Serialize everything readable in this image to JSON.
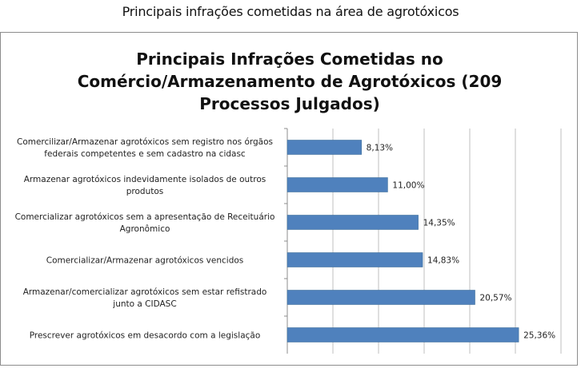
{
  "caption": "Principais infrações cometidas na área de agrotóxicos",
  "chart_data": {
    "type": "bar",
    "orientation": "horizontal",
    "title_lines": [
      "Principais Infrações Cometidas no",
      "Comércio/Armazenamento de Agrotóxicos (209",
      "Processos Julgados)"
    ],
    "categories": [
      [
        "Comercilizar/Armazenar agrotóxicos sem registro nos órgãos",
        "federais competentes e sem cadastro na cidasc"
      ],
      [
        "Armazenar agrotóxicos indevidamente isolados de outros",
        "produtos"
      ],
      [
        "Comercializar agrotóxicos sem a apresentação de Receituário",
        "Agronômico"
      ],
      [
        "Comercializar/Armazenar agrotóxicos vencidos"
      ],
      [
        "Armazenar/comercializar agrotóxicos sem estar refistrado",
        "junto a CIDASC"
      ],
      [
        "Prescrever agrotóxicos em desacordo com a legislação"
      ]
    ],
    "values": [
      8.13,
      11.0,
      14.35,
      14.83,
      20.57,
      25.36
    ],
    "data_labels": [
      "8,13%",
      "11,00%",
      "14,35%",
      "14,83%",
      "20,57%",
      "25,36%"
    ],
    "xlim": [
      0,
      30
    ],
    "grid": true,
    "bar_color": "#4f81bd"
  }
}
